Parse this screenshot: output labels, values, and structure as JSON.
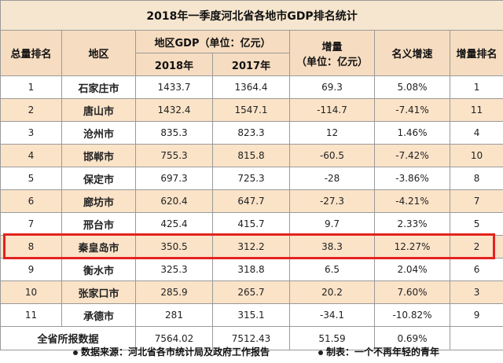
{
  "title": "2018年一季度河北省各地市GDP排名统计",
  "headers": {
    "rank": "总量排名",
    "region": "地区",
    "gdp_group": "地区GDP（单位：亿元）",
    "y2018": "2018年",
    "y2017": "2017年",
    "increase": "增量\n（单位：亿元）",
    "increase_line1": "增量",
    "increase_line2": "（单位：亿元）",
    "growth": "名义增速",
    "inc_rank": "增量排名"
  },
  "rows": [
    {
      "rank": "1",
      "region": "石家庄市",
      "y2018": "1433.7",
      "y2017": "1364.4",
      "increase": "69.3",
      "growth": "5.08%",
      "inc_rank": "1"
    },
    {
      "rank": "2",
      "region": "唐山市",
      "y2018": "1432.4",
      "y2017": "1547.1",
      "increase": "-114.7",
      "growth": "-7.41%",
      "inc_rank": "11"
    },
    {
      "rank": "3",
      "region": "沧州市",
      "y2018": "835.3",
      "y2017": "823.3",
      "increase": "12",
      "growth": "1.46%",
      "inc_rank": "4"
    },
    {
      "rank": "4",
      "region": "邯郸市",
      "y2018": "755.3",
      "y2017": "815.8",
      "increase": "-60.5",
      "growth": "-7.42%",
      "inc_rank": "10"
    },
    {
      "rank": "5",
      "region": "保定市",
      "y2018": "697.3",
      "y2017": "725.3",
      "increase": "-28",
      "growth": "-3.86%",
      "inc_rank": "8"
    },
    {
      "rank": "6",
      "region": "廊坊市",
      "y2018": "620.4",
      "y2017": "647.7",
      "increase": "-27.3",
      "growth": "-4.21%",
      "inc_rank": "7"
    },
    {
      "rank": "7",
      "region": "邢台市",
      "y2018": "425.4",
      "y2017": "415.7",
      "increase": "9.7",
      "growth": "2.33%",
      "inc_rank": "5"
    },
    {
      "rank": "8",
      "region": "秦皇岛市",
      "y2018": "350.5",
      "y2017": "312.2",
      "increase": "38.3",
      "growth": "12.27%",
      "inc_rank": "2"
    },
    {
      "rank": "9",
      "region": "衡水市",
      "y2018": "325.3",
      "y2017": "318.8",
      "increase": "6.5",
      "growth": "2.04%",
      "inc_rank": "6"
    },
    {
      "rank": "10",
      "region": "张家口市",
      "y2018": "285.9",
      "y2017": "265.7",
      "increase": "20.2",
      "growth": "7.60%",
      "inc_rank": "3"
    },
    {
      "rank": "11",
      "region": "承德市",
      "y2018": "281",
      "y2017": "315.1",
      "increase": "-34.1",
      "growth": "-10.82%",
      "inc_rank": "9"
    }
  ],
  "total": {
    "label": "全省所报数据",
    "y2018": "7564.02",
    "y2017": "7512.43",
    "increase": "51.59",
    "growth": "0.69%",
    "inc_rank": ""
  },
  "footer": {
    "source": "数据来源：河北省各市统计局及政府工作报告",
    "maker": "制表：一个不再年轻的青年"
  },
  "colors": {
    "header_bg": "#f6dcc0",
    "stripe_bg": "#fbe3c8",
    "highlight_border": "#e3231f"
  }
}
